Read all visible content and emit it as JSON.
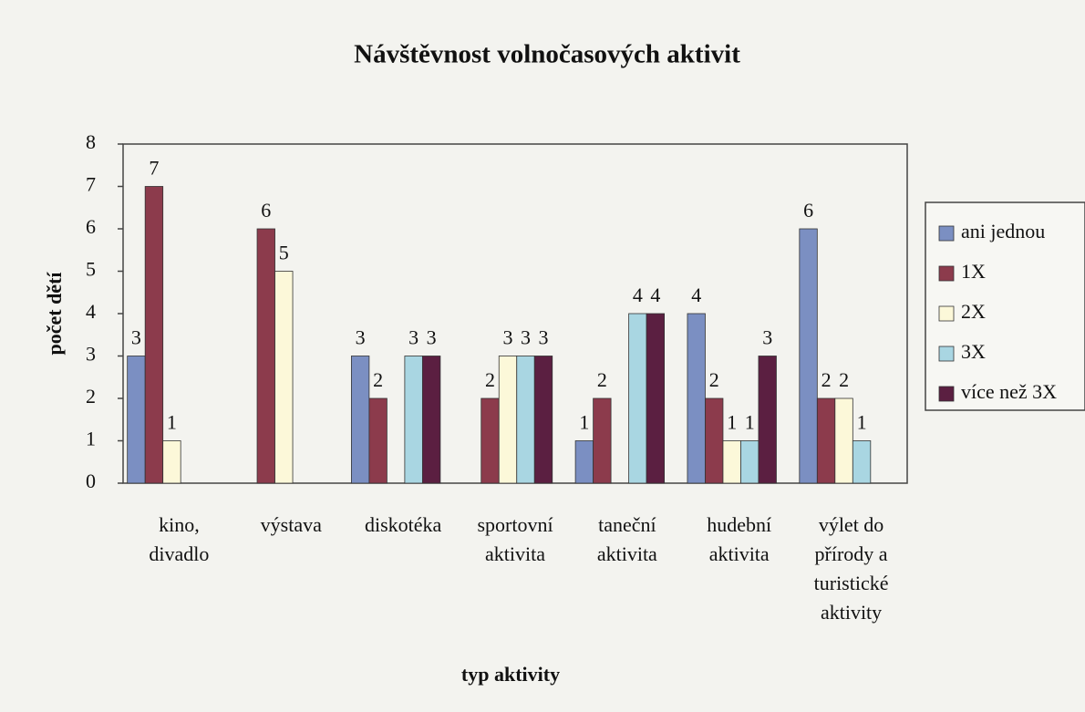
{
  "chart_data": {
    "type": "bar",
    "title": "Návštěvnost volnočasových aktivit",
    "x_label": "typ aktivity",
    "y_label": "počet dětí",
    "categories": [
      "kino, divadlo",
      "výstava",
      "diskotéka",
      "sportovní aktivita",
      "taneční aktivita",
      "hudební aktivita",
      "výlet do přírody a turistické aktivity"
    ],
    "series": [
      {
        "name": "ani jednou",
        "color": "#7b8fc2",
        "values": [
          3,
          null,
          3,
          null,
          1,
          4,
          6
        ]
      },
      {
        "name": "1X",
        "color": "#8c3b4c",
        "values": [
          7,
          6,
          2,
          2,
          2,
          2,
          2
        ]
      },
      {
        "name": "2X",
        "color": "#fcf8d9",
        "values": [
          1,
          5,
          null,
          3,
          null,
          1,
          2
        ]
      },
      {
        "name": "3X",
        "color": "#a9d6e2",
        "values": [
          null,
          null,
          3,
          3,
          4,
          1,
          1
        ]
      },
      {
        "name": "více než 3X",
        "color": "#5b1f41",
        "values": [
          null,
          null,
          3,
          3,
          4,
          3,
          null
        ]
      }
    ],
    "ylim": [
      0,
      8
    ],
    "yticks": [
      0,
      1,
      2,
      3,
      4,
      5,
      6,
      7,
      8
    ],
    "legend": "right"
  }
}
